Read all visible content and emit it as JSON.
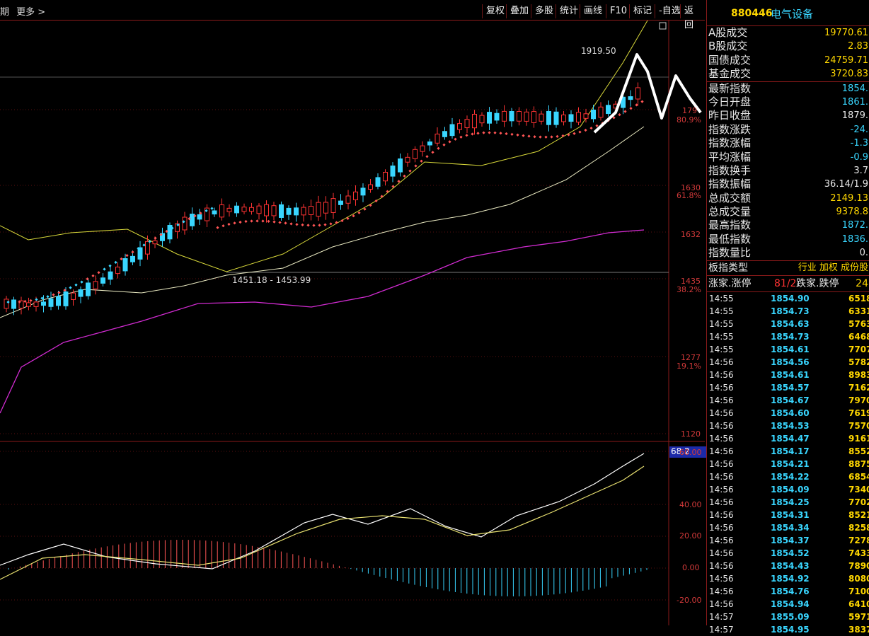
{
  "topbar": {
    "left_labels": [
      "期",
      "更多 >"
    ],
    "buttons": [
      "复权",
      "叠加",
      "多股",
      "统计",
      "画线",
      "F10",
      "标记",
      "-自选",
      "返回"
    ]
  },
  "chart": {
    "price_labels": [
      {
        "text": "1919.50",
        "color": "#e8e8e8"
      },
      {
        "text": "1451.18 - 1453.99",
        "color": "#e8e8e8"
      }
    ],
    "y_axis_main": [
      {
        "text": "179",
        "color": "#d43a3a"
      },
      {
        "text": "80.9%",
        "color": "#d43a3a"
      },
      {
        "text": "1630",
        "color": "#d43a3a"
      },
      {
        "text": "61.8%",
        "color": "#d43a3a"
      },
      {
        "text": "1632",
        "color": "#d43a3a"
      },
      {
        "text": "1435",
        "color": "#d43a3a"
      },
      {
        "text": "38.2%",
        "color": "#d43a3a"
      },
      {
        "text": "1277",
        "color": "#d43a3a"
      },
      {
        "text": "19.1%",
        "color": "#d43a3a"
      },
      {
        "text": "1120",
        "color": "#d43a3a"
      }
    ],
    "y_axis_sub": [
      "68.2",
      "60.00",
      "40.00",
      "20.00",
      "0.00",
      "-20.00"
    ]
  },
  "panel": {
    "code": "880446",
    "name": "电气设备",
    "stats": [
      {
        "label": "A股成交",
        "value": "19770.61",
        "color": "#ffd700"
      },
      {
        "label": "B股成交",
        "value": "2.83",
        "color": "#ffd700"
      },
      {
        "label": "国债成交",
        "value": "24759.71",
        "color": "#ffd700"
      },
      {
        "label": "基金成交",
        "value": "3720.83",
        "color": "#ffd700"
      },
      {
        "label": "最新指数",
        "value": "1854.",
        "color": "#39d6ff"
      },
      {
        "label": "今日开盘",
        "value": "1861.",
        "color": "#39d6ff"
      },
      {
        "label": "昨日收盘",
        "value": "1879.",
        "color": "#e8e8e8"
      },
      {
        "label": "指数涨跌",
        "value": "-24.",
        "color": "#39d6ff"
      },
      {
        "label": "指数涨幅",
        "value": "-1.3",
        "color": "#39d6ff"
      },
      {
        "label": "平均涨幅",
        "value": "-0.9",
        "color": "#39d6ff"
      },
      {
        "label": "指数换手",
        "value": "3.7",
        "color": "#e8e8e8"
      },
      {
        "label": "指数振幅",
        "value": "36.14/1.9",
        "color": "#e8e8e8"
      },
      {
        "label": "总成交额",
        "value": "2149.13",
        "color": "#ffd700"
      },
      {
        "label": "总成交量",
        "value": "9378.8",
        "color": "#ffd700"
      },
      {
        "label": "最高指数",
        "value": "1872.",
        "color": "#39d6ff"
      },
      {
        "label": "最低指数",
        "value": "1836.",
        "color": "#39d6ff"
      },
      {
        "label": "指数量比",
        "value": "0.",
        "color": "#e8e8e8"
      }
    ],
    "plate_label": "板指类型",
    "plate_value": "行业 加权 成份股",
    "up_label": "涨家.涨停",
    "up_value": "81/2",
    "down_label": "跌家.跌停",
    "down_value": "24",
    "ticks": [
      {
        "time": "14:55",
        "price": "1854.90",
        "vol": "6518"
      },
      {
        "time": "14:55",
        "price": "1854.73",
        "vol": "6331"
      },
      {
        "time": "14:55",
        "price": "1854.63",
        "vol": "5763"
      },
      {
        "time": "14:55",
        "price": "1854.73",
        "vol": "6468"
      },
      {
        "time": "14:55",
        "price": "1854.61",
        "vol": "7707"
      },
      {
        "time": "14:56",
        "price": "1854.56",
        "vol": "5782"
      },
      {
        "time": "14:56",
        "price": "1854.61",
        "vol": "8983"
      },
      {
        "time": "14:56",
        "price": "1854.57",
        "vol": "7162"
      },
      {
        "time": "14:56",
        "price": "1854.67",
        "vol": "7970"
      },
      {
        "time": "14:56",
        "price": "1854.60",
        "vol": "7619"
      },
      {
        "time": "14:56",
        "price": "1854.53",
        "vol": "7570"
      },
      {
        "time": "14:56",
        "price": "1854.47",
        "vol": "9161"
      },
      {
        "time": "14:56",
        "price": "1854.17",
        "vol": "8552"
      },
      {
        "time": "14:56",
        "price": "1854.21",
        "vol": "8875"
      },
      {
        "time": "14:56",
        "price": "1854.22",
        "vol": "6854"
      },
      {
        "time": "14:56",
        "price": "1854.09",
        "vol": "7340"
      },
      {
        "time": "14:56",
        "price": "1854.25",
        "vol": "7702"
      },
      {
        "time": "14:56",
        "price": "1854.31",
        "vol": "8521"
      },
      {
        "time": "14:56",
        "price": "1854.34",
        "vol": "8258"
      },
      {
        "time": "14:56",
        "price": "1854.37",
        "vol": "7278"
      },
      {
        "time": "14:56",
        "price": "1854.52",
        "vol": "7433"
      },
      {
        "time": "14:56",
        "price": "1854.43",
        "vol": "7890"
      },
      {
        "time": "14:56",
        "price": "1854.92",
        "vol": "8080"
      },
      {
        "time": "14:56",
        "price": "1854.76",
        "vol": "7100"
      },
      {
        "time": "14:56",
        "price": "1854.94",
        "vol": "6410"
      },
      {
        "time": "14:57",
        "price": "1855.09",
        "vol": "5971"
      },
      {
        "time": "14:57",
        "price": "1854.95",
        "vol": "3837"
      }
    ]
  },
  "colors": {
    "up": "#ff3333",
    "down": "#39d6ff",
    "border": "#8a1a1a",
    "price": "#39d6ff",
    "volume": "#ffd700"
  }
}
